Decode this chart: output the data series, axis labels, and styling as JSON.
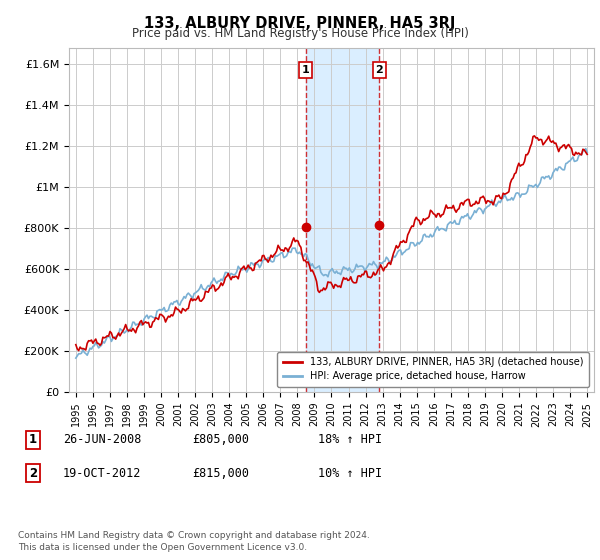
{
  "title": "133, ALBURY DRIVE, PINNER, HA5 3RJ",
  "subtitle": "Price paid vs. HM Land Registry's House Price Index (HPI)",
  "ylabel_ticks": [
    "£0",
    "£200K",
    "£400K",
    "£600K",
    "£800K",
    "£1M",
    "£1.2M",
    "£1.4M",
    "£1.6M"
  ],
  "ytick_values": [
    0,
    200000,
    400000,
    600000,
    800000,
    1000000,
    1200000,
    1400000,
    1600000
  ],
  "ylim": [
    0,
    1680000
  ],
  "xlim_start": 1994.6,
  "xlim_end": 2025.4,
  "xtick_years": [
    1995,
    1996,
    1997,
    1998,
    1999,
    2000,
    2001,
    2002,
    2003,
    2004,
    2005,
    2006,
    2007,
    2008,
    2009,
    2010,
    2011,
    2012,
    2013,
    2014,
    2015,
    2016,
    2017,
    2018,
    2019,
    2020,
    2021,
    2022,
    2023,
    2024,
    2025
  ],
  "sale1_x": 2008.48,
  "sale1_y": 805000,
  "sale1_label": "1",
  "sale1_date": "26-JUN-2008",
  "sale1_price": "£805,000",
  "sale1_hpi": "18% ↑ HPI",
  "sale2_x": 2012.8,
  "sale2_y": 815000,
  "sale2_label": "2",
  "sale2_date": "19-OCT-2012",
  "sale2_price": "£815,000",
  "sale2_hpi": "10% ↑ HPI",
  "highlight_color": "#daeeff",
  "sale_marker_color": "#cc0000",
  "hpi_line_color": "#7ab0d4",
  "price_line_color": "#cc0000",
  "legend_label_price": "133, ALBURY DRIVE, PINNER, HA5 3RJ (detached house)",
  "legend_label_hpi": "HPI: Average price, detached house, Harrow",
  "footnote": "Contains HM Land Registry data © Crown copyright and database right 2024.\nThis data is licensed under the Open Government Licence v3.0.",
  "background_color": "#ffffff",
  "plot_bg_color": "#ffffff",
  "grid_color": "#cccccc"
}
